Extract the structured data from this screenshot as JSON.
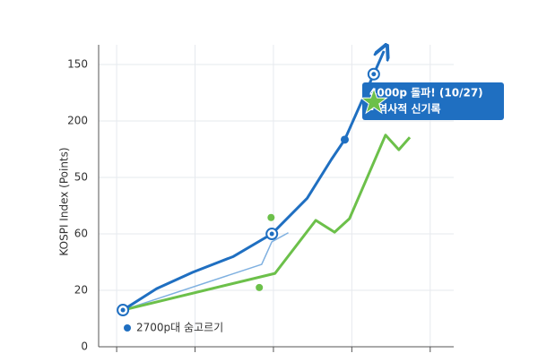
{
  "chart_data": {
    "type": "line",
    "y_label": "KOSPI Index (Points)",
    "ylim": [
      0,
      5.35
    ],
    "yticks": [
      {
        "value": 0,
        "label": "0"
      },
      {
        "value": 1,
        "label": "20"
      },
      {
        "value": 2,
        "label": "60"
      },
      {
        "value": 3,
        "label": "50"
      },
      {
        "value": 4,
        "label": "200"
      },
      {
        "value": 5,
        "label": "150"
      }
    ],
    "xlim": [
      -0.23,
      4.3
    ],
    "xticks": [
      0,
      1,
      2,
      3,
      4
    ],
    "grid": true,
    "series": [
      {
        "name": "2700p대 숨고르기",
        "color": "#1f6fc1",
        "width": 3,
        "x": [
          0.08,
          0.51,
          0.97,
          1.49,
          1.98,
          2.43,
          2.74,
          2.91,
          3.28,
          3.41
        ],
        "values": [
          0.65,
          1.03,
          1.32,
          1.6,
          2.0,
          2.63,
          3.32,
          3.67,
          4.83,
          5.24
        ]
      },
      {
        "color": "#6cc04a",
        "width": 3,
        "x": [
          0.08,
          2.02,
          2.54,
          2.78,
          2.97,
          3.43,
          3.6,
          3.74
        ],
        "values": [
          0.65,
          1.3,
          2.24,
          2.03,
          2.27,
          3.75,
          3.49,
          3.71
        ]
      },
      {
        "color": "#7fb0e0",
        "width": 1.5,
        "x": [
          0.08,
          1.85,
          1.98,
          2.19
        ],
        "values": [
          0.65,
          1.46,
          1.86,
          2.02
        ]
      }
    ],
    "points": {
      "color": "#6cc04a",
      "x": [
        1.97,
        1.82
      ],
      "values": [
        2.29,
        1.05
      ]
    },
    "annotation": {
      "lines": [
        "4000p 돌파! (10/27)",
        "- 역사적 신기록"
      ],
      "color": "#1f6fc1"
    }
  }
}
